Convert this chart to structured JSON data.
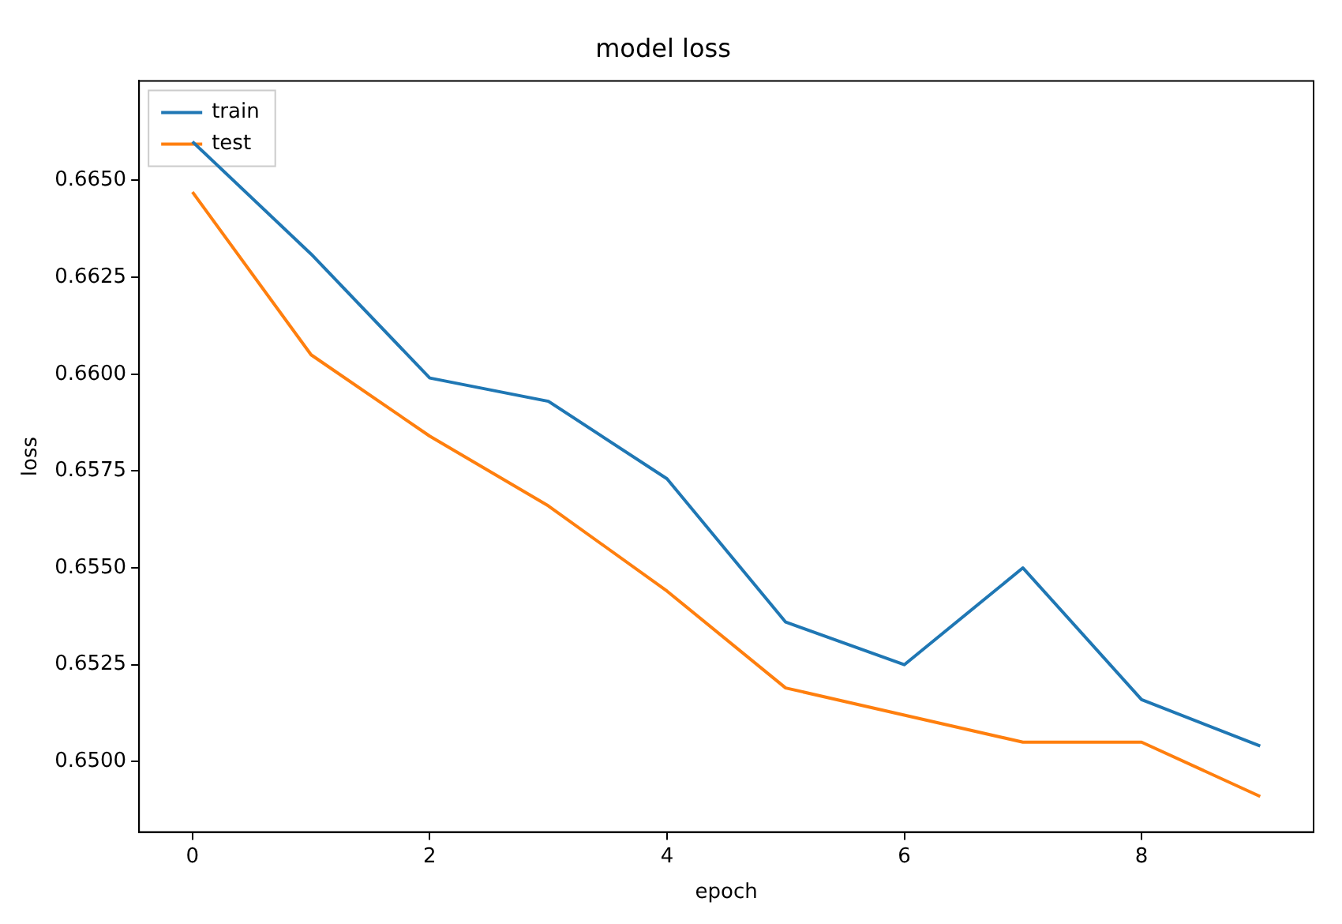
{
  "chart_data": {
    "type": "line",
    "title": "model loss",
    "xlabel": "epoch",
    "ylabel": "loss",
    "x": [
      0,
      1,
      2,
      3,
      4,
      5,
      6,
      7,
      8,
      9
    ],
    "series": [
      {
        "name": "train",
        "color": "#1f77b4",
        "values": [
          0.666,
          0.6631,
          0.6599,
          0.6593,
          0.6573,
          0.6536,
          0.6525,
          0.655,
          0.6516,
          0.6504
        ]
      },
      {
        "name": "test",
        "color": "#ff7f0e",
        "values": [
          0.6647,
          0.6605,
          0.6584,
          0.6566,
          0.6544,
          0.6519,
          0.6512,
          0.6505,
          0.6505,
          0.6491
        ]
      }
    ],
    "xlim": [
      -0.45,
      9.45
    ],
    "xticks": [
      0,
      2,
      4,
      6,
      8
    ],
    "ylim": [
      0.64818,
      0.66757
    ],
    "yticks": [
      {
        "value": 0.65,
        "label": "0.6500"
      },
      {
        "value": 0.6525,
        "label": "0.6525"
      },
      {
        "value": 0.655,
        "label": "0.6550"
      },
      {
        "value": 0.6575,
        "label": "0.6575"
      },
      {
        "value": 0.66,
        "label": "0.6600"
      },
      {
        "value": 0.6625,
        "label": "0.6625"
      },
      {
        "value": 0.665,
        "label": "0.6650"
      }
    ],
    "grid": false,
    "legend": "top left",
    "marker": "none",
    "line_style": "solid"
  }
}
